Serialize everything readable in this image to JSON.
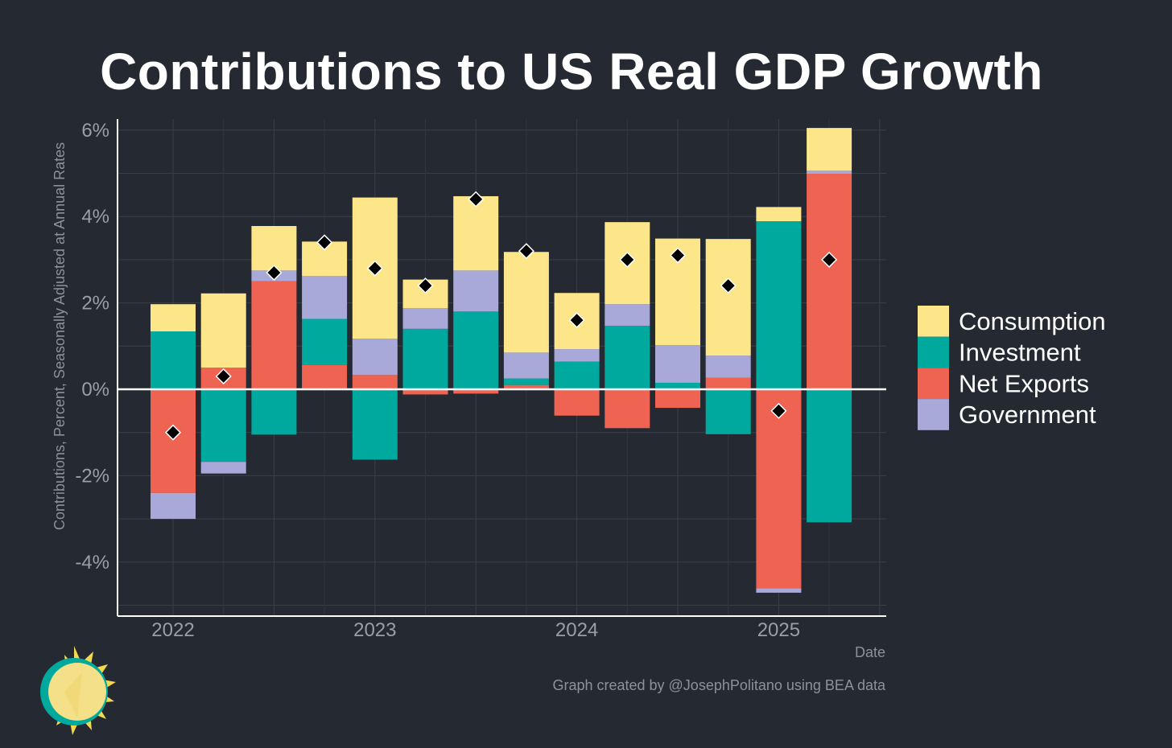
{
  "chart_data": {
    "type": "bar",
    "stacked": true,
    "title": "Contributions to US Real GDP Growth",
    "ylabel": "Contributions, Percent, Seasonally Adjusted at Annual Rates",
    "xlabel": "Date",
    "ylim": [
      -5,
      6.2
    ],
    "yticks": [
      6,
      4,
      2,
      0,
      -2,
      -4
    ],
    "ytick_labels": [
      "6%",
      "4%",
      "2%",
      "0%",
      "-2%",
      "-4%"
    ],
    "xticks": [
      "2022",
      "2023",
      "2024",
      "2025"
    ],
    "quarters": [
      "2022-Q1",
      "2022-Q2",
      "2022-Q3",
      "2022-Q4",
      "2023-Q1",
      "2023-Q2",
      "2023-Q3",
      "2023-Q4",
      "2024-Q1",
      "2024-Q2",
      "2024-Q3",
      "2024-Q4",
      "2025-Q1",
      "2025-Q2"
    ],
    "grid": true,
    "legend_position": "right",
    "series": [
      {
        "name": "Consumption",
        "color": "#fde68a",
        "values": [
          0.63,
          1.72,
          1.03,
          0.8,
          3.27,
          0.66,
          1.72,
          2.33,
          1.3,
          1.9,
          2.47,
          2.7,
          0.33,
          0.99
        ]
      },
      {
        "name": "Investment",
        "color": "#00a99d",
        "values": [
          1.34,
          -1.68,
          -1.05,
          1.07,
          -1.63,
          1.4,
          1.8,
          0.15,
          0.64,
          1.47,
          0.15,
          -1.04,
          3.89,
          -3.08
        ]
      },
      {
        "name": "Net Exports",
        "color": "#ee6352",
        "values": [
          -2.4,
          0.5,
          2.5,
          0.56,
          0.33,
          -0.12,
          -0.1,
          0.1,
          -0.61,
          -0.9,
          -0.43,
          0.27,
          -4.61,
          4.99
        ]
      },
      {
        "name": "Government",
        "color": "#a8a9d8",
        "values": [
          -0.6,
          -0.27,
          0.25,
          0.99,
          0.84,
          0.48,
          0.95,
          0.6,
          0.29,
          0.5,
          0.87,
          0.51,
          -0.1,
          0.07
        ]
      }
    ],
    "totals": [
      -1.0,
      0.3,
      2.7,
      3.4,
      2.8,
      2.4,
      4.4,
      3.2,
      1.6,
      3.0,
      3.1,
      2.4,
      -0.5,
      3.0
    ],
    "totals_marker": "black diamond"
  },
  "credit": "Graph created by @JosephPolitano using BEA data",
  "logo": {
    "name": "sun-logo"
  }
}
